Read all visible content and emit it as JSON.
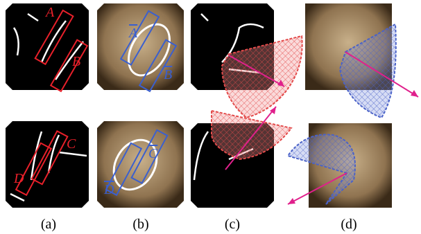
{
  "panels": [
    {
      "caption": "(a)",
      "labels": [
        "A",
        "B",
        "C",
        "D"
      ]
    },
    {
      "caption": "(b)",
      "labels": [
        "A",
        "B",
        "C",
        "D"
      ]
    },
    {
      "caption": "(c)"
    },
    {
      "caption": "(d)"
    }
  ]
}
